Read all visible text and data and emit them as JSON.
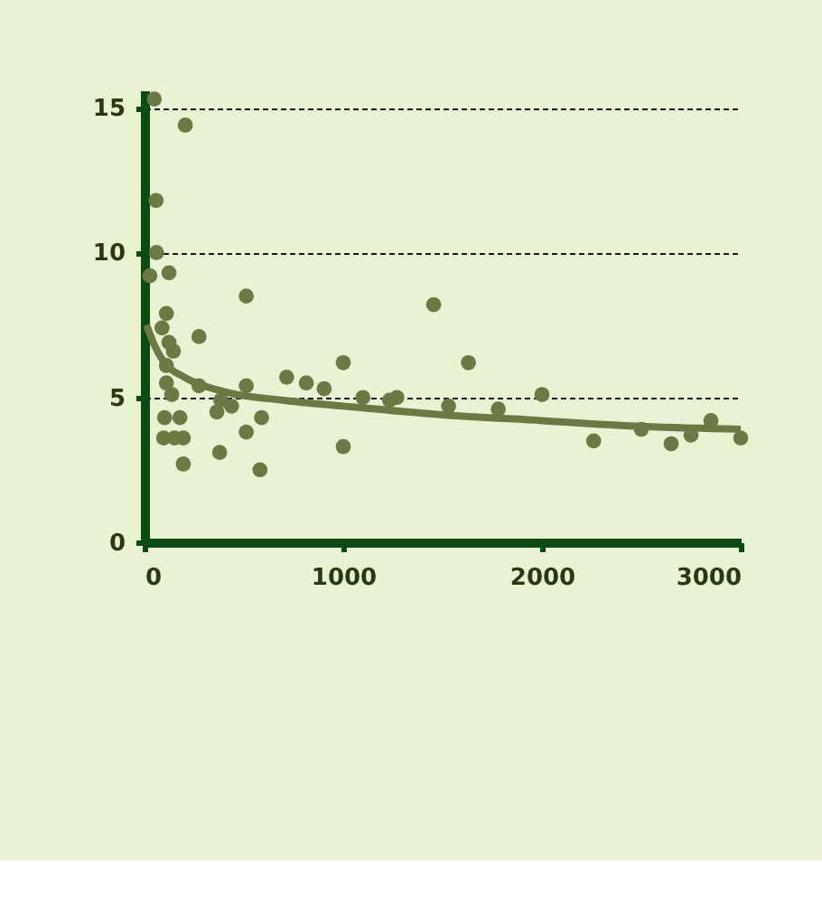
{
  "chart_data": {
    "type": "scatter",
    "xlim": [
      0,
      3000
    ],
    "ylim": [
      0,
      15.6
    ],
    "xticks": [
      0,
      1000,
      2000,
      3000
    ],
    "yticks": [
      0,
      5,
      10,
      15
    ],
    "grid": "y",
    "series": [
      {
        "color": "#6b7a45",
        "marker": "circle",
        "x": [
          49,
          205,
          58,
          60,
          27,
          123,
          110,
          88,
          123,
          145,
          110,
          110,
          137,
          101,
          178,
          96,
          151,
          195,
          195,
          274,
          274,
          364,
          384,
          438,
          378,
          512,
          512,
          512,
          589,
          581,
          715,
          814,
          904,
          1000,
          1000,
          1099,
          1233,
          1455,
          1630,
          1270,
          1530,
          1780,
          2000,
          2260,
          2500,
          2650,
          2750,
          2850,
          3000
        ],
        "values": [
          15.3,
          14.4,
          11.8,
          10.0,
          9.2,
          9.3,
          7.9,
          7.4,
          6.9,
          6.6,
          6.1,
          5.5,
          5.1,
          4.3,
          4.3,
          3.6,
          3.6,
          3.6,
          2.7,
          7.1,
          5.4,
          4.5,
          4.9,
          4.7,
          3.1,
          8.5,
          5.4,
          3.8,
          4.3,
          2.5,
          5.7,
          5.5,
          5.3,
          6.2,
          3.3,
          5.0,
          4.9,
          8.2,
          6.2,
          5.0,
          4.7,
          4.6,
          5.1,
          3.5,
          3.9,
          3.4,
          3.7,
          4.2,
          3.6
        ]
      },
      {
        "type": "line",
        "color": "#6b7a45",
        "line_style": "solid",
        "x": [
          10,
          50,
          100,
          200,
          400,
          700,
          1000,
          1500,
          2000,
          2500,
          3000
        ],
        "values": [
          7.5,
          6.8,
          6.2,
          5.7,
          5.2,
          4.9,
          4.7,
          4.4,
          4.2,
          4.0,
          3.9
        ]
      }
    ]
  }
}
